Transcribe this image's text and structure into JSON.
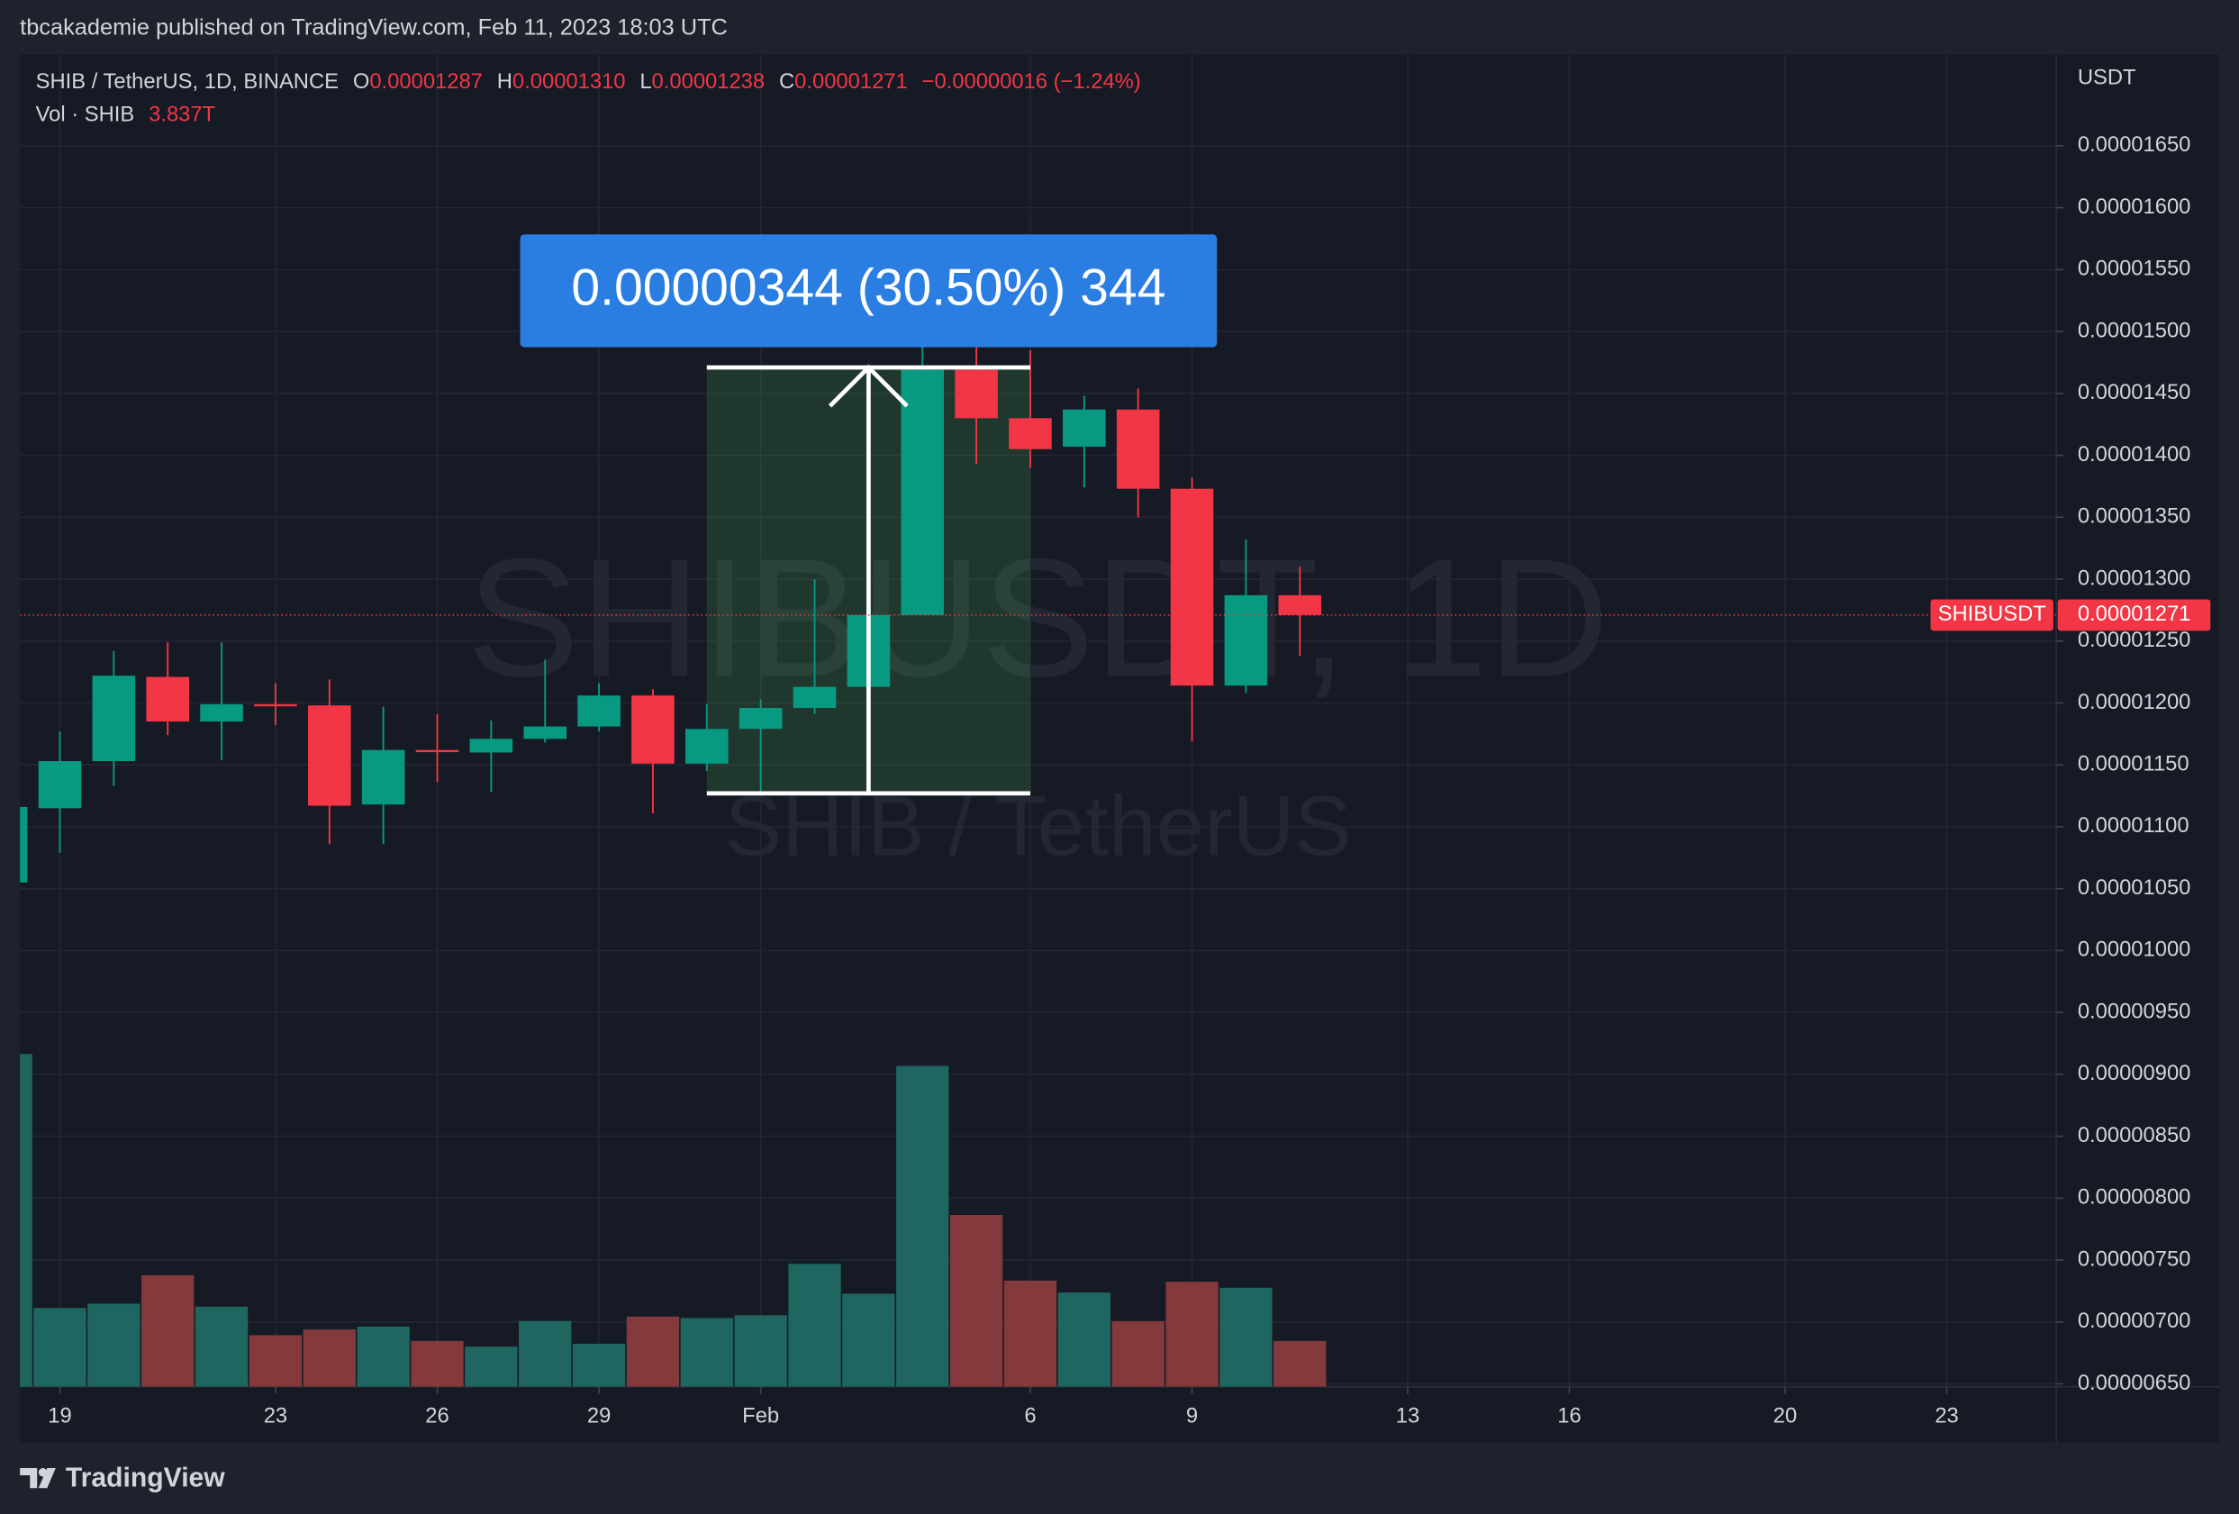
{
  "chart_data": {
    "type": "candlestick",
    "header": "tbcakademie published on TradingView.com, Feb 11, 2023 18:03 UTC",
    "legend": {
      "symbol": "SHIB / TetherUS, 1D, BINANCE",
      "items": [
        {
          "label": "O",
          "value": "0.00001287"
        },
        {
          "label": "H",
          "value": "0.00001310"
        },
        {
          "label": "L",
          "value": "0.00001238"
        },
        {
          "label": "C",
          "value": "0.00001271"
        }
      ],
      "change": "−0.00000016 (−1.24%)",
      "volume_label": "Vol · SHIB",
      "volume_value": "3.837T"
    },
    "watermark": "SHIBUSDT, 1D",
    "watermark_sub": "SHIB / TetherUS",
    "y_axis_label": "USDT",
    "ylim": [
      6.477e-06,
      1.7238e-05
    ],
    "yticks": [
      {
        "value": 6.5e-06,
        "label": "0.00000650"
      },
      {
        "value": 7e-06,
        "label": "0.00000700"
      },
      {
        "value": 7.5e-06,
        "label": "0.00000750"
      },
      {
        "value": 8e-06,
        "label": "0.00000800"
      },
      {
        "value": 8.5e-06,
        "label": "0.00000850"
      },
      {
        "value": 9e-06,
        "label": "0.00000900"
      },
      {
        "value": 9.5e-06,
        "label": "0.00000950"
      },
      {
        "value": 1e-05,
        "label": "0.00001000"
      },
      {
        "value": 1.05e-05,
        "label": "0.00001050"
      },
      {
        "value": 1.1e-05,
        "label": "0.00001100"
      },
      {
        "value": 1.15e-05,
        "label": "0.00001150"
      },
      {
        "value": 1.2e-05,
        "label": "0.00001200"
      },
      {
        "value": 1.25e-05,
        "label": "0.00001250"
      },
      {
        "value": 1.3e-05,
        "label": "0.00001300"
      },
      {
        "value": 1.35e-05,
        "label": "0.00001350"
      },
      {
        "value": 1.4e-05,
        "label": "0.00001400"
      },
      {
        "value": 1.45e-05,
        "label": "0.00001450"
      },
      {
        "value": 1.5e-05,
        "label": "0.00001500"
      },
      {
        "value": 1.55e-05,
        "label": "0.00001550"
      },
      {
        "value": 1.6e-05,
        "label": "0.00001600"
      },
      {
        "value": 1.65e-05,
        "label": "0.00001650"
      }
    ],
    "xlim": [
      0.26,
      38.03
    ],
    "xticks": [
      {
        "value": 1,
        "label": "19"
      },
      {
        "value": 5,
        "label": "23"
      },
      {
        "value": 8,
        "label": "26"
      },
      {
        "value": 11,
        "label": "29"
      },
      {
        "value": 14,
        "label": "Feb"
      },
      {
        "value": 19,
        "label": "6"
      },
      {
        "value": 22,
        "label": "9"
      },
      {
        "value": 26,
        "label": "13"
      },
      {
        "value": 29,
        "label": "16"
      },
      {
        "value": 33,
        "label": "20"
      },
      {
        "value": 36,
        "label": "23"
      }
    ],
    "open": [
      1.055e-05,
      1.115e-05,
      1.153e-05,
      1.221e-05,
      1.185e-05,
      1.199e-05,
      1.198e-05,
      1.118e-05,
      1.162e-05,
      1.16e-05,
      1.171e-05,
      1.181e-05,
      1.206e-05,
      1.151e-05,
      1.179e-05,
      1.196e-05,
      1.213e-05,
      1.271e-05,
      1.469e-05,
      1.43e-05,
      1.407e-05,
      1.437e-05,
      1.373e-05,
      1.214e-05,
      1.287e-05
    ],
    "high": [
      1.12e-05,
      1.177e-05,
      1.242e-05,
      1.249e-05,
      1.249e-05,
      1.216e-05,
      1.219e-05,
      1.197e-05,
      1.191e-05,
      1.186e-05,
      1.235e-05,
      1.216e-05,
      1.211e-05,
      1.199e-05,
      1.203e-05,
      1.3e-05,
      1.292e-05,
      1.572e-05,
      1.537e-05,
      1.485e-05,
      1.448e-05,
      1.454e-05,
      1.382e-05,
      1.332e-05,
      1.31e-05
    ],
    "low": [
      1.05e-05,
      1.079e-05,
      1.133e-05,
      1.174e-05,
      1.154e-05,
      1.182e-05,
      1.086e-05,
      1.086e-05,
      1.136e-05,
      1.128e-05,
      1.168e-05,
      1.177e-05,
      1.111e-05,
      1.145e-05,
      1.128e-05,
      1.191e-05,
      1.206e-05,
      1.271e-05,
      1.393e-05,
      1.39e-05,
      1.374e-05,
      1.35e-05,
      1.169e-05,
      1.208e-05,
      1.238e-05
    ],
    "close": [
      1.116e-05,
      1.153e-05,
      1.222e-05,
      1.185e-05,
      1.199e-05,
      1.198e-05,
      1.117e-05,
      1.162e-05,
      1.161e-05,
      1.171e-05,
      1.181e-05,
      1.206e-05,
      1.151e-05,
      1.179e-05,
      1.196e-05,
      1.213e-05,
      1.271e-05,
      1.469e-05,
      1.43e-05,
      1.405e-05,
      1.437e-05,
      1.373e-05,
      1.214e-05,
      1.287e-05,
      1.271e-05
    ],
    "volume": [
      27.9,
      6.6,
      6.96,
      9.35,
      6.71,
      4.32,
      4.8,
      5.04,
      3.84,
      3.36,
      5.52,
      3.6,
      5.88,
      5.76,
      6.0,
      10.3,
      7.8,
      26.9,
      14.4,
      8.9,
      7.9,
      5.5,
      8.8,
      8.3,
      3.837
    ],
    "up_color": "#089981",
    "down_color": "#f23645",
    "volume_up_color": "#1f6661",
    "volume_down_color": "#843a3c",
    "grid": true,
    "last_price": {
      "symbol": "SHIBUSDT",
      "value": 1.271e-05,
      "label": "0.00001271",
      "color": "#f23645"
    },
    "measure": {
      "label": "0.00000344 (30.50%) 344",
      "from": 1.127e-05,
      "to": 1.471e-05,
      "start": 13,
      "end": 19,
      "color": "#2a7de1"
    },
    "brand": "TradingView"
  }
}
